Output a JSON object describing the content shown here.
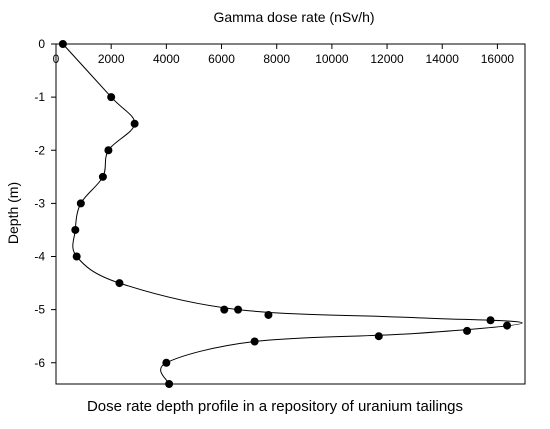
{
  "caption": "Dose rate depth profile in a repository of uranium tailings",
  "chart_data": {
    "type": "scatter",
    "title": "",
    "xlabel": "Gamma dose rate (nSv/h)",
    "ylabel": "Depth (m)",
    "xlim": [
      0,
      17000
    ],
    "ylim": [
      -6.4,
      0
    ],
    "x_ticks": [
      0,
      2000,
      4000,
      6000,
      8000,
      10000,
      12000,
      14000,
      16000
    ],
    "y_ticks": [
      0,
      -1,
      -2,
      -3,
      -4,
      -5,
      -6
    ],
    "x_axis_position": "top",
    "grid": false,
    "legend": "none",
    "series": [
      {
        "points": [
          {
            "x": 250,
            "y": 0
          },
          {
            "x": 2000,
            "y": -1
          },
          {
            "x": 2850,
            "y": -1.5
          },
          {
            "x": 1900,
            "y": -2
          },
          {
            "x": 1700,
            "y": -2.5
          },
          {
            "x": 900,
            "y": -3
          },
          {
            "x": 700,
            "y": -3.5
          },
          {
            "x": 750,
            "y": -4
          },
          {
            "x": 2300,
            "y": -4.5
          },
          {
            "x": 6100,
            "y": -5
          },
          {
            "x": 6600,
            "y": -5
          },
          {
            "x": 7700,
            "y": -5.1
          },
          {
            "x": 15750,
            "y": -5.2
          },
          {
            "x": 16350,
            "y": -5.3
          },
          {
            "x": 14900,
            "y": -5.4
          },
          {
            "x": 11700,
            "y": -5.5
          },
          {
            "x": 7200,
            "y": -5.6
          },
          {
            "x": 4000,
            "y": -6
          },
          {
            "x": 4100,
            "y": -6.4
          }
        ]
      }
    ],
    "curve": [
      {
        "x": 250,
        "y": 0
      },
      {
        "x": 2000,
        "y": -1
      },
      {
        "x": 2850,
        "y": -1.5
      },
      {
        "x": 1900,
        "y": -2
      },
      {
        "x": 1700,
        "y": -2.5
      },
      {
        "x": 900,
        "y": -3
      },
      {
        "x": 700,
        "y": -3.5
      },
      {
        "x": 750,
        "y": -4
      },
      {
        "x": 2300,
        "y": -4.5
      },
      {
        "x": 6600,
        "y": -5
      },
      {
        "x": 13000,
        "y": -5.15
      },
      {
        "x": 16900,
        "y": -5.25
      },
      {
        "x": 13000,
        "y": -5.45
      },
      {
        "x": 7200,
        "y": -5.6
      },
      {
        "x": 4000,
        "y": -6
      },
      {
        "x": 4100,
        "y": -6.4
      }
    ],
    "colors": {
      "marker": "#000000",
      "line": "#000000",
      "axis": "#000000"
    }
  }
}
